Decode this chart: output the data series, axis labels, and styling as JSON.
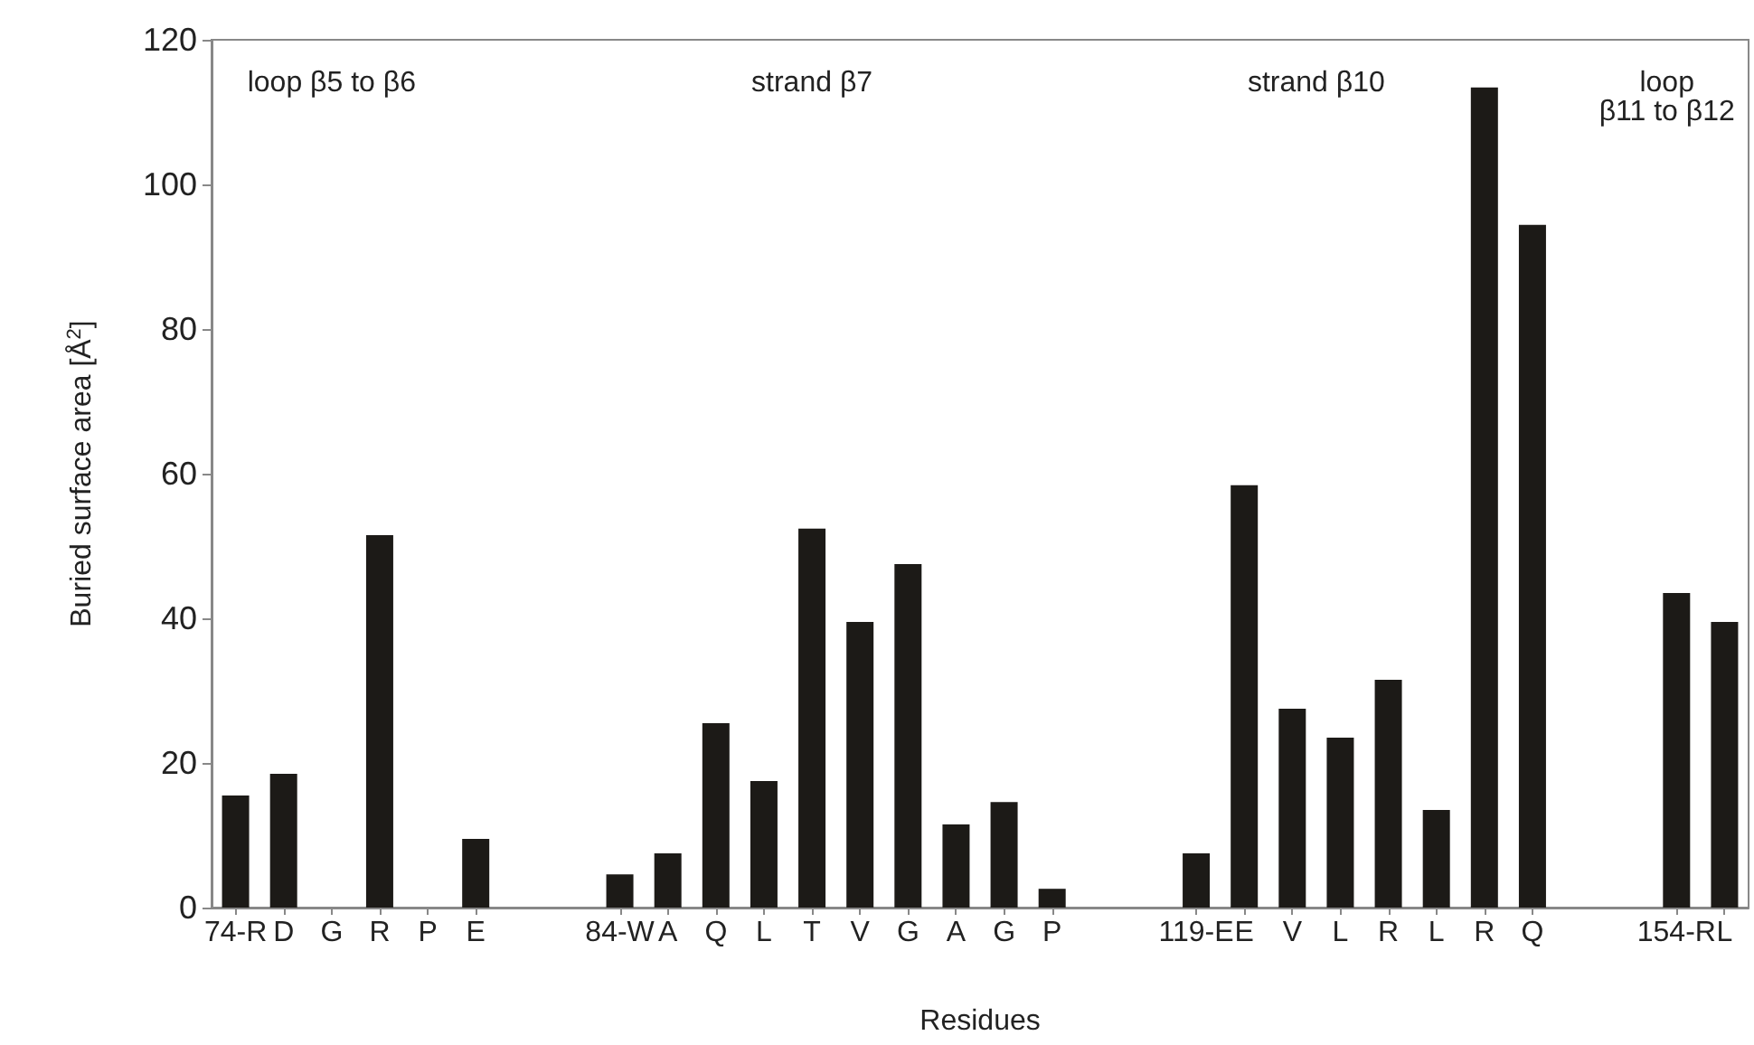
{
  "chart_data": {
    "type": "bar",
    "xlabel": "Residues",
    "ylabel": "Buried surface area [Å$^{2}$]",
    "categories": [
      "74-R",
      "D",
      "G",
      "R",
      "P",
      "E",
      null,
      null,
      "84-W",
      "A",
      "Q",
      "L",
      "T",
      "V",
      "G",
      "A",
      "G",
      "P",
      null,
      null,
      "119-E",
      "E",
      "V",
      "L",
      "R",
      "L",
      "R",
      "Q",
      null,
      null,
      "154-R",
      "L"
    ],
    "values": [
      15.5,
      18.5,
      0,
      51.5,
      0,
      9.5,
      null,
      null,
      4.6,
      7.5,
      25.5,
      17.5,
      52.4,
      39.5,
      47.5,
      11.5,
      14.6,
      2.6,
      null,
      null,
      7.5,
      58.4,
      27.5,
      23.5,
      31.5,
      13.5,
      113.4,
      94.4,
      null,
      null,
      43.5,
      39.5
    ],
    "color": "#1c1a17",
    "ylim": [
      0,
      120
    ],
    "yticks": [
      0,
      20,
      40,
      60,
      80,
      100,
      120
    ],
    "grid": false,
    "annotations": [
      "loop β5 to β6",
      "strand β7",
      "strand β10",
      "loop\nβ11 to β12"
    ]
  }
}
